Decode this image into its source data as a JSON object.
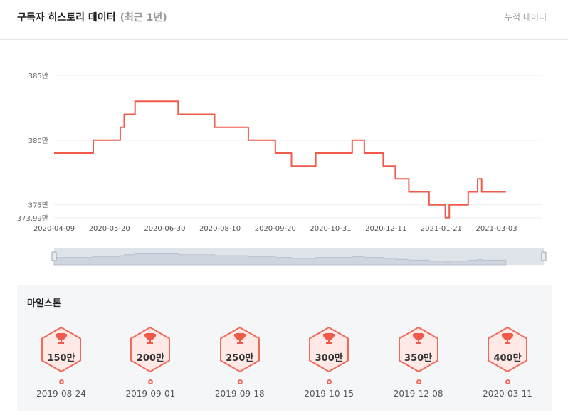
{
  "header": {
    "title": "구독자 히스토리 데이터",
    "subtitle": "(최근 1년)",
    "cumulative_link": "누적 데이터"
  },
  "colors": {
    "line": "#f05a4a",
    "grid": "#eeeeee",
    "navigator_fill": "#dfe3ea",
    "badge_border": "#f06a5a",
    "badge_fill": "#ffe9e7",
    "trophy": "#f05a4a"
  },
  "chart_data": {
    "type": "line",
    "y_ticks": [
      "385만",
      "380만",
      "375만",
      "373.99만"
    ],
    "y_tick_values": [
      385,
      380,
      375,
      373.99
    ],
    "ylim": [
      373.99,
      385
    ],
    "x_ticks": [
      "2020-04-09",
      "2020-05-20",
      "2020-06-30",
      "2020-08-10",
      "2020-09-20",
      "2020-10-31",
      "2020-12-11",
      "2021-01-21",
      "2021-03-03"
    ],
    "xlim": [
      "2020-04-09",
      "2021-04-06"
    ],
    "grid": "horizontal",
    "series": [
      {
        "points": [
          [
            "2020-04-09",
            379
          ],
          [
            "2020-05-08",
            379
          ],
          [
            "2020-05-08",
            380
          ],
          [
            "2020-05-28",
            380
          ],
          [
            "2020-05-28",
            381
          ],
          [
            "2020-05-31",
            381
          ],
          [
            "2020-05-31",
            382
          ],
          [
            "2020-06-08",
            382
          ],
          [
            "2020-06-08",
            383
          ],
          [
            "2020-07-10",
            383
          ],
          [
            "2020-07-10",
            382
          ],
          [
            "2020-08-06",
            382
          ],
          [
            "2020-08-06",
            381
          ],
          [
            "2020-08-31",
            381
          ],
          [
            "2020-08-31",
            380
          ],
          [
            "2020-09-20",
            380
          ],
          [
            "2020-09-20",
            379
          ],
          [
            "2020-10-02",
            379
          ],
          [
            "2020-10-02",
            378
          ],
          [
            "2020-10-20",
            378
          ],
          [
            "2020-10-20",
            379
          ],
          [
            "2020-11-16",
            379
          ],
          [
            "2020-11-16",
            380
          ],
          [
            "2020-11-25",
            380
          ],
          [
            "2020-11-25",
            379
          ],
          [
            "2020-12-09",
            379
          ],
          [
            "2020-12-09",
            378
          ],
          [
            "2020-12-18",
            378
          ],
          [
            "2020-12-18",
            377
          ],
          [
            "2020-12-28",
            377
          ],
          [
            "2020-12-28",
            376
          ],
          [
            "2021-01-12",
            376
          ],
          [
            "2021-01-12",
            375
          ],
          [
            "2021-01-24",
            375
          ],
          [
            "2021-01-24",
            374
          ],
          [
            "2021-01-27",
            374
          ],
          [
            "2021-01-27",
            375
          ],
          [
            "2021-02-10",
            375
          ],
          [
            "2021-02-10",
            376
          ],
          [
            "2021-02-17",
            376
          ],
          [
            "2021-02-17",
            377
          ],
          [
            "2021-02-20",
            377
          ],
          [
            "2021-02-20",
            376
          ],
          [
            "2021-03-10",
            376
          ]
        ]
      }
    ]
  },
  "milestones": {
    "title": "마일스톤",
    "items": [
      {
        "label": "150만",
        "date": "2019-08-24"
      },
      {
        "label": "200만",
        "date": "2019-09-01"
      },
      {
        "label": "250만",
        "date": "2019-09-18"
      },
      {
        "label": "300만",
        "date": "2019-10-15"
      },
      {
        "label": "350만",
        "date": "2019-12-08"
      },
      {
        "label": "400만",
        "date": "2020-03-11"
      }
    ]
  }
}
